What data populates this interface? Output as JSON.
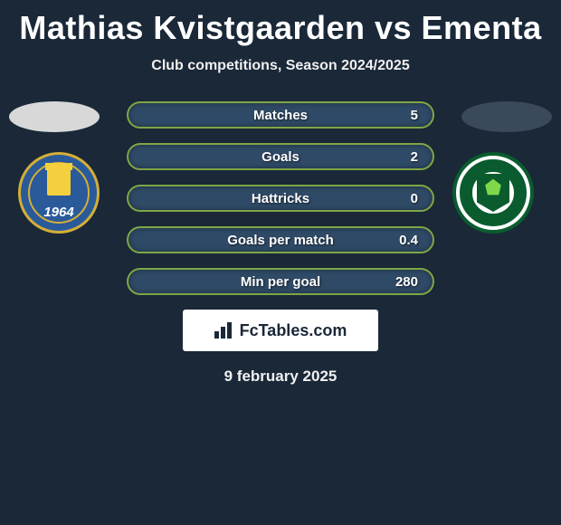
{
  "header": {
    "title": "Mathias Kvistgaarden vs Ementa",
    "subtitle": "Club competitions, Season 2024/2025",
    "title_color": "#ffffff",
    "title_fontsize": 36,
    "subtitle_fontsize": 16
  },
  "background_color": "#1a2838",
  "ovals": {
    "left_color": "#d8d8d8",
    "right_color": "#3a4a5a"
  },
  "crests": {
    "left": {
      "type": "circle-shield",
      "primary_color": "#2a5a9a",
      "accent_color": "#d4af37",
      "tower_color": "#f4d03f",
      "year": "1964"
    },
    "right": {
      "type": "circle-ring-shield",
      "primary_color": "#0a5c2e",
      "background_color": "#ffffff",
      "leaf_color": "#7fd84a"
    }
  },
  "stats": {
    "type": "horizontal-bar-pills",
    "bar_bg_color": "#2f4a66",
    "bar_border_color": "#7fa644",
    "text_color": "#ffffff",
    "label_fontsize": 15,
    "rows": [
      {
        "label": "Matches",
        "value": "5"
      },
      {
        "label": "Goals",
        "value": "2"
      },
      {
        "label": "Hattricks",
        "value": "0"
      },
      {
        "label": "Goals per match",
        "value": "0.4"
      },
      {
        "label": "Min per goal",
        "value": "280"
      }
    ]
  },
  "brand": {
    "text": "FcTables.com",
    "box_bg": "#ffffff",
    "text_color": "#1a2838"
  },
  "footer": {
    "date": "9 february 2025"
  }
}
